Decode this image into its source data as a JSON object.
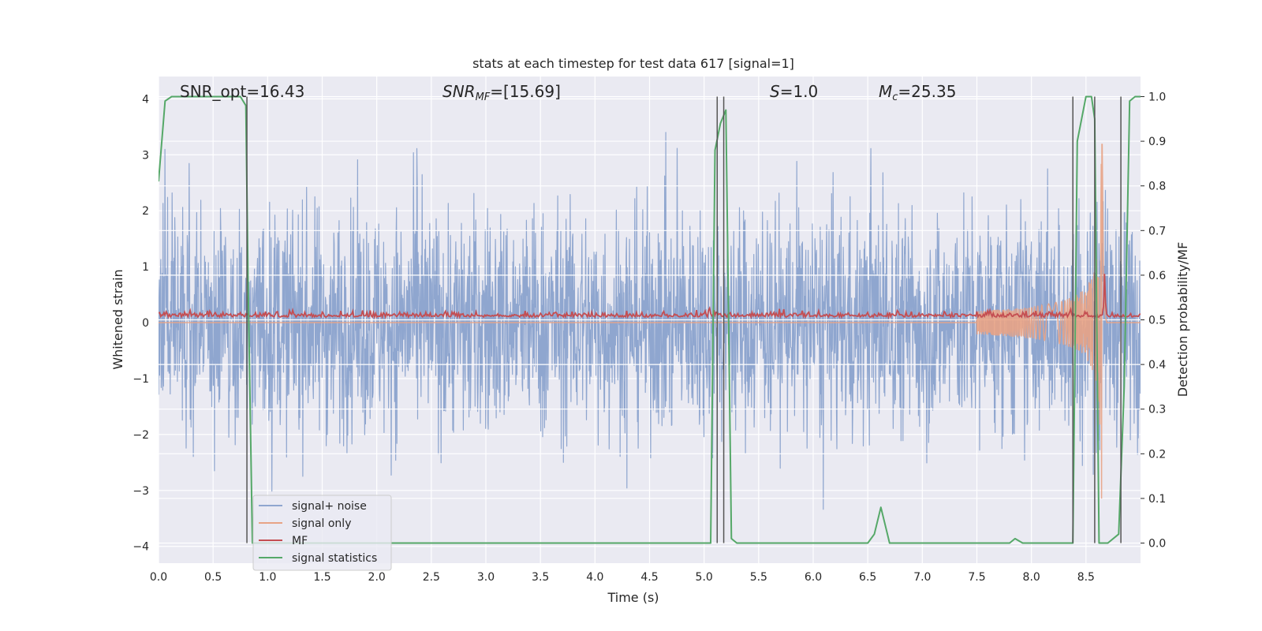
{
  "chart_data": {
    "type": "line",
    "title": "stats at each timestep for test data 617 [signal=1]",
    "xlabel": "Time (s)",
    "ylabel": "Whitened strain",
    "ylabel_right": "Detection probability/MF",
    "xlim": [
      0.0,
      9.0
    ],
    "ylim": [
      -4.3,
      4.4
    ],
    "ylim_right": [
      -0.045,
      1.045
    ],
    "x_ticks": [
      0.0,
      0.5,
      1.0,
      1.5,
      2.0,
      2.5,
      3.0,
      3.5,
      4.0,
      4.5,
      5.0,
      5.5,
      6.0,
      6.5,
      7.0,
      7.5,
      8.0,
      8.5
    ],
    "x_tick_labels": [
      "0.0",
      "0.5",
      "1.0",
      "1.5",
      "2.0",
      "2.5",
      "3.0",
      "3.5",
      "4.0",
      "4.5",
      "5.0",
      "5.5",
      "6.0",
      "6.5",
      "7.0",
      "7.5",
      "8.0",
      "8.5"
    ],
    "y_ticks": [
      -4,
      -3,
      -2,
      -1,
      0,
      1,
      2,
      3,
      4
    ],
    "y_tick_labels": [
      "−4",
      "−3",
      "−2",
      "−1",
      "0",
      "1",
      "2",
      "3",
      "4"
    ],
    "y_ticks_right": [
      0.0,
      0.1,
      0.2,
      0.3,
      0.4,
      0.5,
      0.6,
      0.7,
      0.8,
      0.9,
      1.0
    ],
    "y_tick_labels_right": [
      "0.0",
      "0.1",
      "0.2",
      "0.3",
      "0.4",
      "0.5",
      "0.6",
      "0.7",
      "0.8",
      "0.9",
      "1.0"
    ],
    "grid": true,
    "legend_position": "bottom-left",
    "annotations": {
      "snr_opt": "SNR_opt=16.43",
      "snr_mf_label": "SNR",
      "snr_mf_sub": "MF",
      "snr_mf_value": "=[15.69]",
      "s_label": "S",
      "s_value": "=1.0",
      "mc_label": "M",
      "mc_sub": "c",
      "mc_value": "=25.35"
    },
    "series": [
      {
        "name": "signal+ noise",
        "color": "#8fa6cf",
        "axis": "left",
        "description_envelope": {
          "typical_abs": 1.6,
          "peak_abs": 3.4
        }
      },
      {
        "name": "signal only",
        "color": "#e8a385",
        "axis": "left",
        "chirp": {
          "start": 7.5,
          "merger": 8.65,
          "peak_amp": 3.3
        }
      },
      {
        "name": "MF",
        "color": "#c44e52",
        "axis": "left",
        "baseline": 0.1,
        "peak": {
          "x": 8.67,
          "y": 0.85
        }
      },
      {
        "name": "signal statistics",
        "color": "#55a868",
        "axis": "right",
        "x": [
          0.0,
          0.06,
          0.12,
          0.5,
          0.75,
          0.8,
          0.82,
          0.86,
          1.0,
          2.0,
          3.0,
          4.0,
          5.0,
          5.06,
          5.1,
          5.15,
          5.2,
          5.25,
          5.3,
          6.0,
          6.5,
          6.56,
          6.62,
          6.68,
          6.7,
          7.0,
          7.5,
          7.8,
          7.85,
          7.92,
          8.0,
          8.38,
          8.42,
          8.5,
          8.55,
          8.58,
          8.62,
          8.7,
          8.8,
          8.85,
          8.9,
          8.95,
          9.0
        ],
        "y": [
          0.81,
          0.99,
          1.0,
          1.0,
          1.0,
          0.98,
          0.6,
          0.0,
          0.0,
          0.0,
          0.0,
          0.0,
          0.0,
          0.0,
          0.88,
          0.94,
          0.97,
          0.01,
          0.0,
          0.0,
          0.0,
          0.02,
          0.08,
          0.02,
          0.0,
          0.0,
          0.0,
          0.0,
          0.01,
          0.0,
          0.0,
          0.0,
          0.9,
          1.0,
          1.0,
          0.95,
          0.0,
          0.0,
          0.02,
          0.35,
          0.99,
          1.0,
          1.0
        ]
      }
    ],
    "vertical_markers": [
      0.81,
      5.12,
      5.18,
      8.38,
      8.58,
      8.82
    ]
  }
}
